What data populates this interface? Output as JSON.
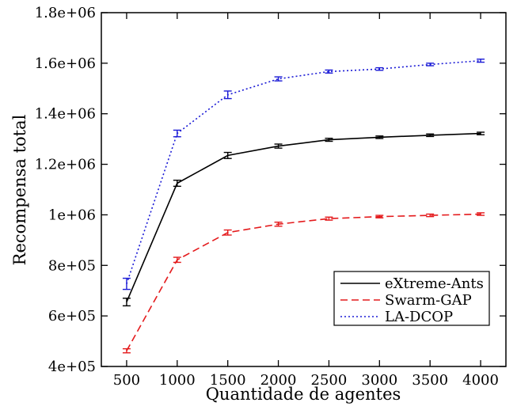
{
  "chart_data": {
    "type": "line",
    "title": "",
    "xlabel": "Quantidade de agentes",
    "ylabel": "Recompensa total",
    "x": [
      500,
      1000,
      1500,
      2000,
      2500,
      3000,
      3500,
      4000
    ],
    "xlim": [
      250,
      4250
    ],
    "ylim": [
      400000,
      1800000
    ],
    "xticks": [
      500,
      1000,
      1500,
      2000,
      2500,
      3000,
      3500,
      4000
    ],
    "xtick_labels": [
      "500",
      "1000",
      "1500",
      "2000",
      "2500",
      "3000",
      "3500",
      "4000"
    ],
    "yticks": [
      400000,
      600000,
      800000,
      1000000,
      1200000,
      1400000,
      1600000,
      1800000
    ],
    "ytick_labels": [
      "4e+05",
      "6e+05",
      "8e+05",
      "1e+06",
      "1.2e+06",
      "1.4e+06",
      "1.6e+06",
      "1.8e+06"
    ],
    "grid": false,
    "legend_position": "bottom-right",
    "series": [
      {
        "name": "eXtreme-Ants",
        "color": "#000000",
        "dash": "solid",
        "values": [
          655000,
          1125000,
          1235000,
          1272000,
          1297000,
          1307000,
          1315000,
          1322000
        ],
        "errors": [
          15000,
          12000,
          12000,
          8000,
          6000,
          5000,
          5000,
          5000
        ]
      },
      {
        "name": "Swarm-GAP",
        "color": "#e41a1c",
        "dash": "dashed",
        "values": [
          462000,
          822000,
          930000,
          963000,
          985000,
          993000,
          998000,
          1003000
        ],
        "errors": [
          8000,
          10000,
          10000,
          8000,
          6000,
          5000,
          5000,
          5000
        ]
      },
      {
        "name": "LA-DCOP",
        "color": "#1a1ad6",
        "dash": "dotted",
        "values": [
          727000,
          1322000,
          1475000,
          1538000,
          1567000,
          1577000,
          1595000,
          1610000
        ],
        "errors": [
          22000,
          13000,
          15000,
          8000,
          6000,
          5000,
          5000,
          6000
        ]
      }
    ]
  }
}
